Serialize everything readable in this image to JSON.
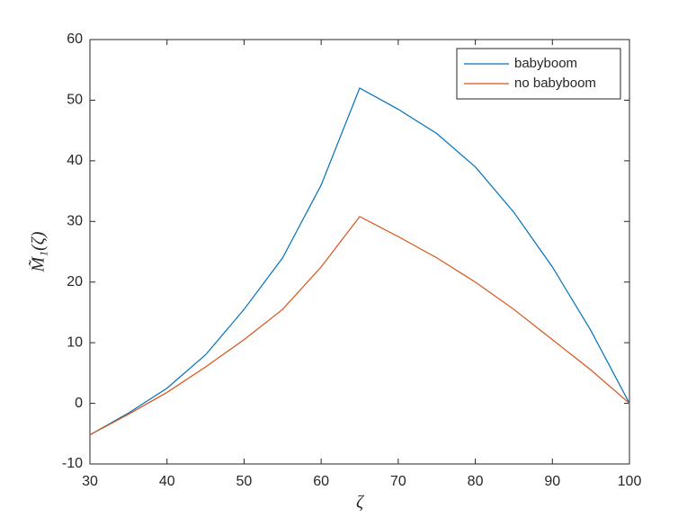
{
  "chart_data": {
    "type": "line",
    "xlabel": "ζ",
    "ylabel": "M̃₁(ζ)",
    "x": [
      30,
      35,
      40,
      45,
      50,
      55,
      60,
      65,
      70,
      75,
      80,
      85,
      90,
      95,
      100
    ],
    "series": [
      {
        "name": "babyboom",
        "color": "#0072bd",
        "values": [
          -5.2,
          -1.6,
          2.5,
          8,
          15.5,
          24,
          36,
          52,
          48.5,
          44.5,
          39,
          31.5,
          22.5,
          12,
          0
        ]
      },
      {
        "name": "no babyboom",
        "color": "#d95319",
        "values": [
          -5.2,
          -1.8,
          1.8,
          6,
          10.5,
          15.5,
          22.5,
          30.8,
          27.5,
          24,
          20,
          15.5,
          10.5,
          5.5,
          0
        ]
      }
    ],
    "xlim": [
      30,
      100
    ],
    "xticks": [
      30,
      40,
      50,
      60,
      70,
      80,
      90,
      100
    ],
    "ylim": [
      -10,
      60
    ],
    "yticks": [
      -10,
      0,
      10,
      20,
      30,
      40,
      50,
      60
    ],
    "legend": "top-right"
  }
}
